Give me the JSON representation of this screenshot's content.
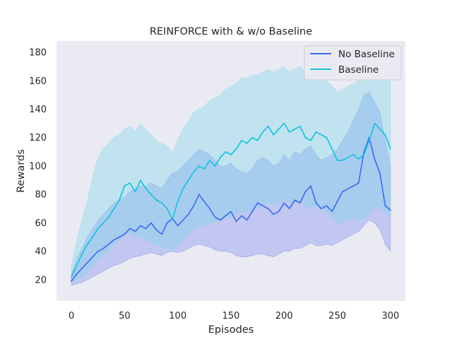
{
  "chart_data": {
    "type": "line",
    "title": "REINFORCE with & w/o Baseline",
    "xlabel": "Episodes",
    "ylabel": "Rewards",
    "xlim": [
      -14,
      314
    ],
    "ylim": [
      5,
      188
    ],
    "xticks": [
      0,
      50,
      100,
      150,
      200,
      250,
      300
    ],
    "yticks": [
      20,
      40,
      60,
      80,
      100,
      120,
      140,
      160,
      180
    ],
    "grid": false,
    "background": "#eaeaf2",
    "legend": {
      "placement": "top-right"
    },
    "series": [
      {
        "name": "No Baseline",
        "color": "#3f6ef4",
        "band_color": "#6b7cf0",
        "x": [
          0,
          5,
          10,
          15,
          20,
          25,
          30,
          35,
          40,
          45,
          50,
          55,
          60,
          65,
          70,
          75,
          80,
          85,
          90,
          95,
          100,
          105,
          110,
          115,
          120,
          125,
          130,
          135,
          140,
          145,
          150,
          155,
          160,
          165,
          170,
          175,
          180,
          185,
          190,
          195,
          200,
          205,
          210,
          215,
          220,
          225,
          230,
          235,
          240,
          245,
          250,
          255,
          260,
          265,
          270,
          275,
          280,
          285,
          290,
          295,
          300
        ],
        "mean": [
          19,
          24,
          28,
          32,
          36,
          40,
          42,
          45,
          48,
          50,
          52,
          56,
          54,
          58,
          56,
          60,
          55,
          52,
          60,
          63,
          58,
          62,
          66,
          72,
          80,
          75,
          70,
          64,
          62,
          65,
          68,
          61,
          65,
          62,
          68,
          74,
          72,
          70,
          66,
          68,
          74,
          70,
          76,
          74,
          82,
          86,
          74,
          70,
          72,
          68,
          75,
          82,
          84,
          86,
          88,
          110,
          120,
          105,
          95,
          72,
          69
        ],
        "lower": [
          16,
          17,
          18,
          20,
          22,
          24,
          26,
          28,
          30,
          31,
          33,
          35,
          36,
          37,
          38,
          39,
          38,
          37,
          39,
          40,
          39,
          40,
          42,
          44,
          45,
          44,
          43,
          41,
          40,
          40,
          39,
          37,
          36,
          36,
          37,
          38,
          38,
          37,
          36,
          38,
          40,
          40,
          42,
          42,
          44,
          46,
          44,
          44,
          45,
          44,
          46,
          48,
          50,
          52,
          54,
          58,
          62,
          60,
          55,
          45,
          40
        ],
        "upper": [
          24,
          35,
          42,
          50,
          56,
          62,
          66,
          70,
          74,
          76,
          78,
          82,
          84,
          86,
          86,
          88,
          86,
          84,
          90,
          95,
          96,
          100,
          104,
          108,
          112,
          110,
          108,
          104,
          100,
          100,
          102,
          98,
          96,
          95,
          98,
          104,
          106,
          104,
          100,
          102,
          108,
          104,
          110,
          108,
          112,
          114,
          108,
          104,
          106,
          108,
          112,
          118,
          124,
          132,
          140,
          150,
          152,
          145,
          138,
          118,
          100
        ]
      },
      {
        "name": "Baseline",
        "color": "#17c3e0",
        "band_color": "#7fd8ea",
        "x": [
          0,
          5,
          10,
          15,
          20,
          25,
          30,
          35,
          40,
          45,
          50,
          55,
          60,
          65,
          70,
          75,
          80,
          85,
          90,
          95,
          100,
          105,
          110,
          115,
          120,
          125,
          130,
          135,
          140,
          145,
          150,
          155,
          160,
          165,
          170,
          175,
          180,
          185,
          190,
          195,
          200,
          205,
          210,
          215,
          220,
          225,
          230,
          235,
          240,
          245,
          250,
          255,
          260,
          265,
          270,
          275,
          280,
          285,
          290,
          295,
          300
        ],
        "mean": [
          22,
          30,
          38,
          45,
          50,
          56,
          60,
          64,
          70,
          76,
          86,
          88,
          82,
          90,
          84,
          80,
          76,
          74,
          70,
          62,
          75,
          84,
          90,
          96,
          100,
          98,
          104,
          100,
          106,
          110,
          108,
          112,
          118,
          116,
          120,
          118,
          124,
          128,
          122,
          126,
          130,
          124,
          126,
          128,
          120,
          118,
          124,
          122,
          120,
          112,
          104,
          104,
          106,
          108,
          105,
          108,
          118,
          130,
          126,
          122,
          112
        ],
        "lower": [
          18,
          20,
          22,
          26,
          30,
          34,
          38,
          40,
          44,
          48,
          52,
          52,
          50,
          50,
          48,
          46,
          44,
          44,
          42,
          40,
          44,
          48,
          52,
          56,
          58,
          58,
          60,
          60,
          62,
          64,
          64,
          66,
          68,
          68,
          70,
          70,
          72,
          74,
          72,
          74,
          76,
          74,
          74,
          76,
          72,
          70,
          72,
          70,
          68,
          64,
          60,
          60,
          62,
          64,
          62,
          62,
          66,
          72,
          70,
          68,
          64
        ],
        "upper": [
          30,
          48,
          62,
          76,
          92,
          106,
          112,
          116,
          120,
          122,
          126,
          128,
          124,
          130,
          126,
          122,
          118,
          116,
          114,
          110,
          118,
          126,
          132,
          138,
          140,
          142,
          146,
          148,
          150,
          154,
          156,
          158,
          162,
          162,
          164,
          164,
          166,
          168,
          166,
          168,
          170,
          166,
          168,
          170,
          166,
          164,
          166,
          164,
          160,
          156,
          152,
          154,
          156,
          158,
          160,
          162,
          166,
          170,
          172,
          168,
          160
        ]
      }
    ]
  }
}
